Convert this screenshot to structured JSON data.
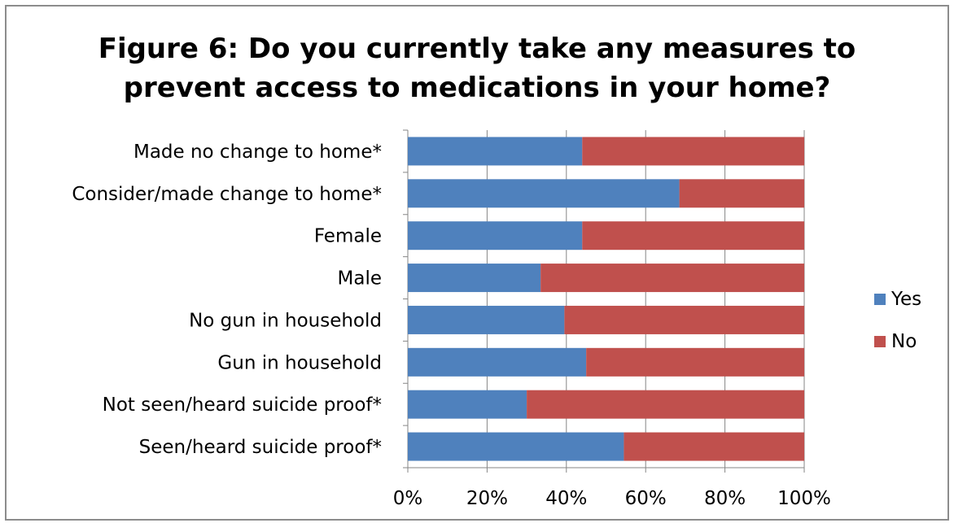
{
  "chart_data": {
    "type": "bar",
    "orientation": "horizontal",
    "stacked": true,
    "title": "Figure 6: Do you currently take any measures to prevent access to medications in your home?",
    "title_lines": [
      "Figure 6: Do you currently take any measures to",
      "prevent access to medications in your home?"
    ],
    "categories": [
      "Made no change to home*",
      "Consider/made change to home*",
      "Female",
      "Male",
      "No gun in household",
      "Gun in household",
      "Not seen/heard suicide proof*",
      "Seen/heard suicide proof*"
    ],
    "series": [
      {
        "name": "Yes",
        "color": "#4f81bd",
        "values": [
          44,
          68.5,
          44,
          33.5,
          39.5,
          45,
          30,
          54.5
        ]
      },
      {
        "name": "No",
        "color": "#c0504d",
        "values": [
          56,
          31.5,
          56,
          66.5,
          60.5,
          55,
          70,
          45.5
        ]
      }
    ],
    "xlim": [
      0,
      100
    ],
    "x_ticks": [
      "0%",
      "20%",
      "40%",
      "60%",
      "80%",
      "100%"
    ],
    "grid": true,
    "legend_position": "right"
  }
}
